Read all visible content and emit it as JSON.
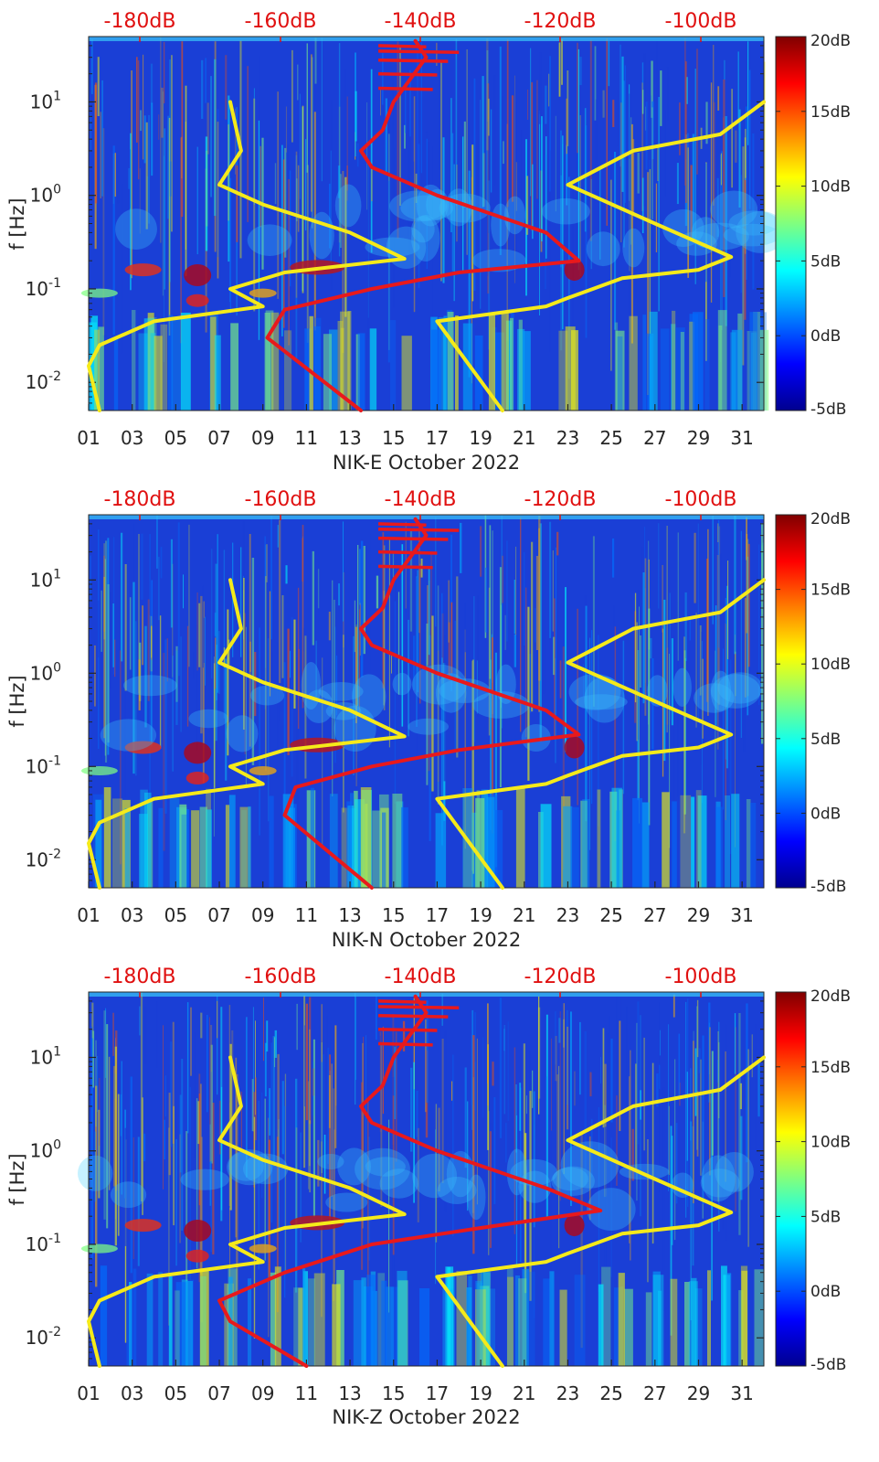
{
  "colors": {
    "spectro_bg": "#1a3fd6",
    "red_curve": "#e8191c",
    "yellow_curve": "#f5ea1a",
    "top_label": "#e01010",
    "axis_text": "#262626"
  },
  "chart_data": [
    {
      "type": "heatmap",
      "title": "NIK-E October 2022",
      "xlabel": "NIK-E October 2022",
      "ylabel": "f [Hz]",
      "xlim": [
        1,
        32
      ],
      "ylim": [
        0.005,
        50
      ],
      "yscale": "log",
      "x_tick_labels": [
        "01",
        "03",
        "05",
        "07",
        "09",
        "11",
        "13",
        "15",
        "17",
        "19",
        "21",
        "23",
        "25",
        "27",
        "29",
        "31"
      ],
      "y_tick_labels": [
        {
          "value": 0.01,
          "base": "10",
          "exp": "-2"
        },
        {
          "value": 0.1,
          "base": "10",
          "exp": "-1"
        },
        {
          "value": 1,
          "base": "10",
          "exp": "0"
        },
        {
          "value": 10,
          "base": "10",
          "exp": "1"
        }
      ],
      "top_axis_labels": [
        "-180dB",
        "-160dB",
        "-140dB",
        "-120dB",
        "-100dB"
      ],
      "colorbar": {
        "range_db": [
          -5,
          20
        ],
        "tick_labels": [
          "20dB",
          "15dB",
          "10dB",
          "5dB",
          "0dB",
          "-5dB"
        ]
      },
      "series": [
        {
          "name": "red-noise-model",
          "color": "red",
          "points": [
            [
              13.5,
              0.005
            ],
            [
              9.2,
              0.03
            ],
            [
              10,
              0.06
            ],
            [
              14,
              0.1
            ],
            [
              18,
              0.15
            ],
            [
              23.5,
              0.2
            ],
            [
              22,
              0.4
            ],
            [
              17,
              1
            ],
            [
              14,
              2
            ],
            [
              13.5,
              3
            ],
            [
              14.5,
              5
            ],
            [
              15,
              10
            ],
            [
              16.5,
              30
            ],
            [
              16,
              45
            ]
          ]
        },
        {
          "name": "yellow-noise-model-lower",
          "color": "yellow",
          "points": [
            [
              1.5,
              0.005
            ],
            [
              1,
              0.015
            ],
            [
              1.5,
              0.025
            ],
            [
              4,
              0.045
            ],
            [
              9,
              0.065
            ],
            [
              7.5,
              0.1
            ],
            [
              10,
              0.15
            ],
            [
              15.5,
              0.21
            ],
            [
              13,
              0.4
            ],
            [
              9,
              0.8
            ],
            [
              7,
              1.3
            ],
            [
              8,
              3
            ],
            [
              7.5,
              10
            ]
          ]
        },
        {
          "name": "yellow-noise-model-upper",
          "color": "yellow",
          "points": [
            [
              20,
              0.005
            ],
            [
              17,
              0.045
            ],
            [
              22,
              0.065
            ],
            [
              23,
              0.08
            ],
            [
              25.5,
              0.13
            ],
            [
              29,
              0.16
            ],
            [
              30.5,
              0.22
            ],
            [
              27,
              0.5
            ],
            [
              23,
              1.3
            ],
            [
              26,
              3
            ],
            [
              30,
              4.5
            ],
            [
              32,
              10
            ]
          ]
        }
      ]
    },
    {
      "type": "heatmap",
      "title": "NIK-N October 2022",
      "xlabel": "NIK-N October 2022",
      "ylabel": "f [Hz]",
      "xlim": [
        1,
        32
      ],
      "ylim": [
        0.005,
        50
      ],
      "yscale": "log",
      "x_tick_labels": [
        "01",
        "03",
        "05",
        "07",
        "09",
        "11",
        "13",
        "15",
        "17",
        "19",
        "21",
        "23",
        "25",
        "27",
        "29",
        "31"
      ],
      "y_tick_labels": [
        {
          "value": 0.01,
          "base": "10",
          "exp": "-2"
        },
        {
          "value": 0.1,
          "base": "10",
          "exp": "-1"
        },
        {
          "value": 1,
          "base": "10",
          "exp": "0"
        },
        {
          "value": 10,
          "base": "10",
          "exp": "1"
        }
      ],
      "top_axis_labels": [
        "-180dB",
        "-160dB",
        "-140dB",
        "-120dB",
        "-100dB"
      ],
      "colorbar": {
        "range_db": [
          -5,
          20
        ],
        "tick_labels": [
          "20dB",
          "15dB",
          "10dB",
          "5dB",
          "0dB",
          "-5dB"
        ]
      },
      "series": [
        {
          "name": "red-noise-model",
          "color": "red",
          "points": [
            [
              14,
              0.005
            ],
            [
              10,
              0.03
            ],
            [
              10.5,
              0.06
            ],
            [
              14,
              0.1
            ],
            [
              18,
              0.15
            ],
            [
              23.5,
              0.22
            ],
            [
              22,
              0.4
            ],
            [
              17,
              1
            ],
            [
              14,
              2
            ],
            [
              13.5,
              3
            ],
            [
              14.5,
              5
            ],
            [
              15,
              10
            ],
            [
              16.5,
              30
            ],
            [
              16,
              45
            ]
          ]
        },
        {
          "name": "yellow-noise-model-lower",
          "color": "yellow",
          "points": [
            [
              1.5,
              0.005
            ],
            [
              1,
              0.015
            ],
            [
              1.5,
              0.025
            ],
            [
              4,
              0.045
            ],
            [
              9,
              0.065
            ],
            [
              7.5,
              0.1
            ],
            [
              10,
              0.15
            ],
            [
              15.5,
              0.21
            ],
            [
              13,
              0.4
            ],
            [
              9,
              0.8
            ],
            [
              7,
              1.3
            ],
            [
              8,
              3
            ],
            [
              7.5,
              10
            ]
          ]
        },
        {
          "name": "yellow-noise-model-upper",
          "color": "yellow",
          "points": [
            [
              20,
              0.005
            ],
            [
              17,
              0.045
            ],
            [
              22,
              0.065
            ],
            [
              23,
              0.08
            ],
            [
              25.5,
              0.13
            ],
            [
              29,
              0.16
            ],
            [
              30.5,
              0.22
            ],
            [
              27,
              0.5
            ],
            [
              23,
              1.3
            ],
            [
              26,
              3
            ],
            [
              30,
              4.5
            ],
            [
              32,
              10
            ]
          ]
        }
      ]
    },
    {
      "type": "heatmap",
      "title": "NIK-Z October 2022",
      "xlabel": "NIK-Z October 2022",
      "ylabel": "f [Hz]",
      "xlim": [
        1,
        32
      ],
      "ylim": [
        0.005,
        50
      ],
      "yscale": "log",
      "x_tick_labels": [
        "01",
        "03",
        "05",
        "07",
        "09",
        "11",
        "13",
        "15",
        "17",
        "19",
        "21",
        "23",
        "25",
        "27",
        "29",
        "31"
      ],
      "y_tick_labels": [
        {
          "value": 0.01,
          "base": "10",
          "exp": "-2"
        },
        {
          "value": 0.1,
          "base": "10",
          "exp": "-1"
        },
        {
          "value": 1,
          "base": "10",
          "exp": "0"
        },
        {
          "value": 10,
          "base": "10",
          "exp": "1"
        }
      ],
      "top_axis_labels": [
        "-180dB",
        "-160dB",
        "-140dB",
        "-120dB",
        "-100dB"
      ],
      "colorbar": {
        "range_db": [
          -5,
          20
        ],
        "tick_labels": [
          "20dB",
          "15dB",
          "10dB",
          "5dB",
          "0dB",
          "-5dB"
        ]
      },
      "series": [
        {
          "name": "red-noise-model",
          "color": "red",
          "points": [
            [
              11,
              0.005
            ],
            [
              7.5,
              0.015
            ],
            [
              7,
              0.025
            ],
            [
              10,
              0.05
            ],
            [
              14,
              0.1
            ],
            [
              19,
              0.15
            ],
            [
              24.5,
              0.23
            ],
            [
              22,
              0.4
            ],
            [
              17,
              1
            ],
            [
              14,
              2
            ],
            [
              13.5,
              3
            ],
            [
              14.5,
              5
            ],
            [
              15,
              10
            ],
            [
              16.5,
              30
            ],
            [
              16,
              45
            ]
          ]
        },
        {
          "name": "yellow-noise-model-lower",
          "color": "yellow",
          "points": [
            [
              1.5,
              0.005
            ],
            [
              1,
              0.015
            ],
            [
              1.5,
              0.025
            ],
            [
              4,
              0.045
            ],
            [
              9,
              0.065
            ],
            [
              7.5,
              0.1
            ],
            [
              10,
              0.15
            ],
            [
              15.5,
              0.21
            ],
            [
              13,
              0.4
            ],
            [
              9,
              0.8
            ],
            [
              7,
              1.3
            ],
            [
              8,
              3
            ],
            [
              7.5,
              10
            ]
          ]
        },
        {
          "name": "yellow-noise-model-upper",
          "color": "yellow",
          "points": [
            [
              20,
              0.005
            ],
            [
              17,
              0.045
            ],
            [
              22,
              0.065
            ],
            [
              23,
              0.08
            ],
            [
              25.5,
              0.13
            ],
            [
              29,
              0.16
            ],
            [
              30.5,
              0.22
            ],
            [
              27,
              0.5
            ],
            [
              23,
              1.3
            ],
            [
              26,
              3
            ],
            [
              30,
              4.5
            ],
            [
              32,
              10
            ]
          ]
        }
      ]
    }
  ]
}
